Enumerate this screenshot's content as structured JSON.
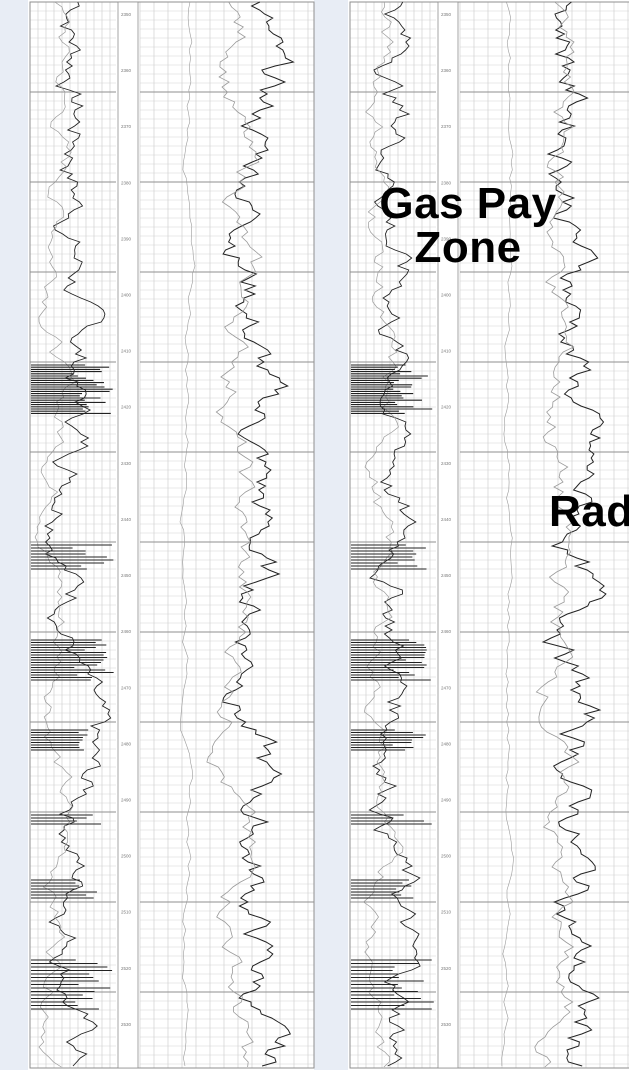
{
  "annotations": {
    "gas_pay_zone_line1": "Gas Pay",
    "gas_pay_zone_line2": "Zone",
    "truncated_label": "Rad"
  },
  "depth_tracks": {
    "left_log": {
      "bands": [
        "2350",
        "2360",
        "2370",
        "2380",
        "2390",
        "2400",
        "2410",
        "2420",
        "2430",
        "2440",
        "2450",
        "2460",
        "2470",
        "2480",
        "2490",
        "2500",
        "2510",
        "2520",
        "2530"
      ]
    },
    "right_log": {
      "bands": [
        "2350",
        "2360",
        "2370",
        "2380",
        "2390",
        "2400",
        "2410",
        "2420",
        "2430",
        "2440",
        "2450",
        "2460",
        "2470",
        "2480",
        "2490",
        "2500",
        "2510",
        "2520",
        "2530"
      ]
    }
  },
  "colors": {
    "background": "#ffffff",
    "margin_tint": "#e8edf5",
    "grid": "#c9c9c9",
    "grid_major": "#8f8f8f",
    "trace": "#222222",
    "trace_light": "#9a9a9a"
  }
}
